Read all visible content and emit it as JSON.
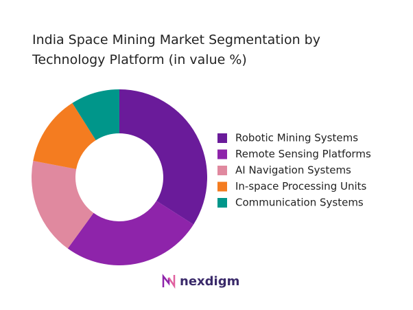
{
  "chart_data": {
    "type": "donut",
    "title": "India Space Mining Market Segmentation by Technology Platform (in value %)",
    "categories": [
      "Robotic Mining Systems",
      "Remote Sensing Platforms",
      "AI Navigation Systems",
      "In-space Processing Units",
      "Communication Systems"
    ],
    "values": [
      34,
      26,
      18,
      13,
      9
    ],
    "colors": [
      "#6a1b9a",
      "#8e24aa",
      "#e0899f",
      "#f47c20",
      "#00968a"
    ],
    "legend": "right"
  },
  "brand": "nexdigm"
}
